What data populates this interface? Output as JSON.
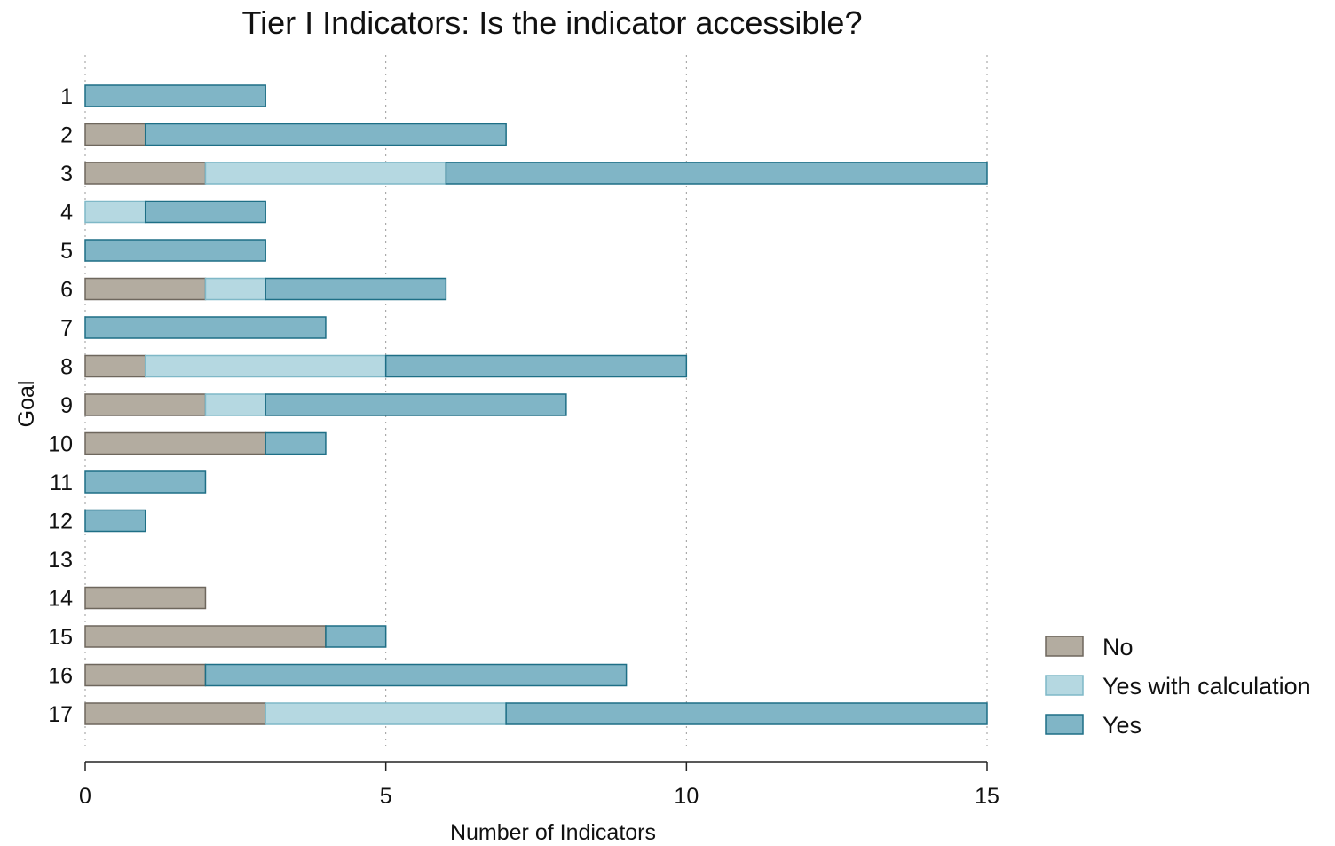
{
  "chart_data": {
    "type": "bar",
    "orientation": "horizontal",
    "stacked": true,
    "title": "Tier I Indicators: Is the indicator accessible?",
    "xlabel": "Number of Indicators",
    "ylabel": "Goal",
    "xlim": [
      0,
      15
    ],
    "xticks": [
      "0",
      "5",
      "10",
      "15"
    ],
    "grid": "vertical dotted",
    "legend_position": "right-bottom",
    "categories": [
      "1",
      "2",
      "3",
      "4",
      "5",
      "6",
      "7",
      "8",
      "9",
      "10",
      "11",
      "12",
      "13",
      "14",
      "15",
      "16",
      "17"
    ],
    "series": [
      {
        "name": "No",
        "color": "#b3aca0",
        "stroke": "#6e675d",
        "values": [
          0,
          1,
          2,
          0,
          0,
          2,
          0,
          1,
          2,
          3,
          0,
          0,
          0,
          2,
          4,
          2,
          3
        ]
      },
      {
        "name": "Yes with calculation",
        "color": "#b5d8e1",
        "stroke": "#7fb8c7",
        "values": [
          0,
          0,
          4,
          1,
          0,
          1,
          0,
          4,
          1,
          0,
          0,
          0,
          0,
          0,
          0,
          0,
          4
        ]
      },
      {
        "name": "Yes",
        "color": "#80b5c6",
        "stroke": "#1e6f86",
        "values": [
          3,
          6,
          9,
          2,
          3,
          3,
          4,
          5,
          5,
          1,
          2,
          1,
          0,
          0,
          1,
          7,
          8
        ]
      }
    ]
  }
}
